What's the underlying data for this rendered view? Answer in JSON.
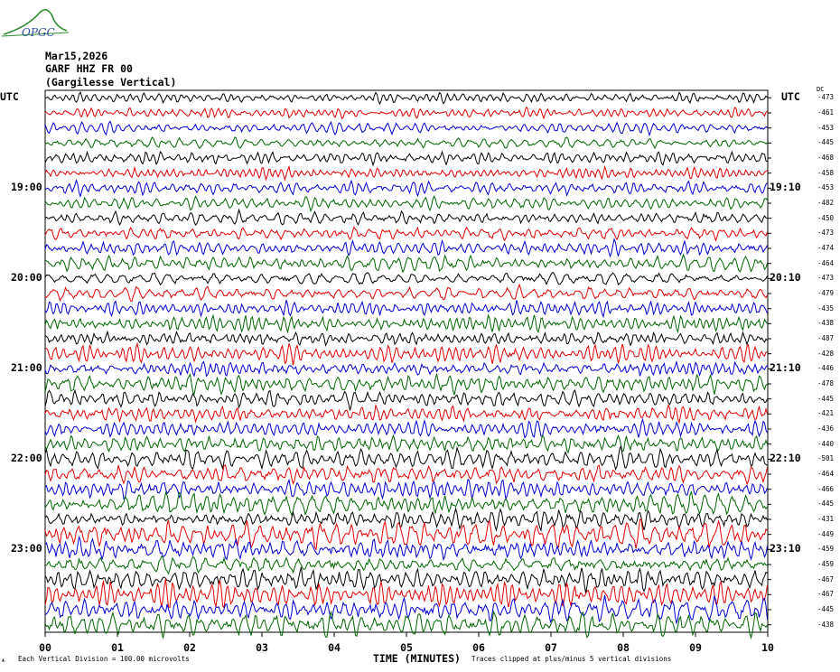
{
  "header": {
    "date": "Mar15,2026",
    "station": "GARF HHZ FR 00",
    "location": "(Gargilesse Vertical)"
  },
  "logo": {
    "text": "OPGC"
  },
  "labels": {
    "utc_left": "UTC",
    "utc_right": "UTC",
    "dc_header": "DC"
  },
  "footer": {
    "scale": "Each Vertical Division =  100.00 microvolts",
    "clip": "Traces clipped at plus/minus 5 vertical divisions",
    "xtitle": "TIME (MINUTES)"
  },
  "colors": {
    "cycle": [
      "#000000",
      "#e00000",
      "#0000d0",
      "#006400"
    ]
  },
  "chart_data": {
    "type": "line",
    "title": "",
    "xlabel": "TIME (MINUTES)",
    "ylabel": "",
    "xlim": [
      0,
      10
    ],
    "x_ticks": [
      "00",
      "01",
      "02",
      "03",
      "04",
      "05",
      "06",
      "07",
      "08",
      "09",
      "10"
    ],
    "left_hour_labels": [
      {
        "label": "19:00",
        "row": 6
      },
      {
        "label": "20:00",
        "row": 12
      },
      {
        "label": "21:00",
        "row": 18
      },
      {
        "label": "22:00",
        "row": 24
      },
      {
        "label": "23:00",
        "row": 30
      }
    ],
    "right_hour_labels": [
      {
        "label": "19:10",
        "row": 6
      },
      {
        "label": "20:10",
        "row": 12
      },
      {
        "label": "21:10",
        "row": 18
      },
      {
        "label": "22:10",
        "row": 24
      },
      {
        "label": "23:10",
        "row": 30
      }
    ],
    "dc_offsets": [
      "-473",
      "-461",
      "-453",
      "-445",
      "-468",
      "-458",
      "-453",
      "-482",
      "-450",
      "-473",
      "-474",
      "-464",
      "-473",
      "-479",
      "-435",
      "-438",
      "-487",
      "-428",
      "-446",
      "-478",
      "-445",
      "-421",
      "-436",
      "-440",
      "-501",
      "-464",
      "-466",
      "-445",
      "-431",
      "-449",
      "-459",
      "-459",
      "-467",
      "-467",
      "-445",
      "-438"
    ]
  }
}
